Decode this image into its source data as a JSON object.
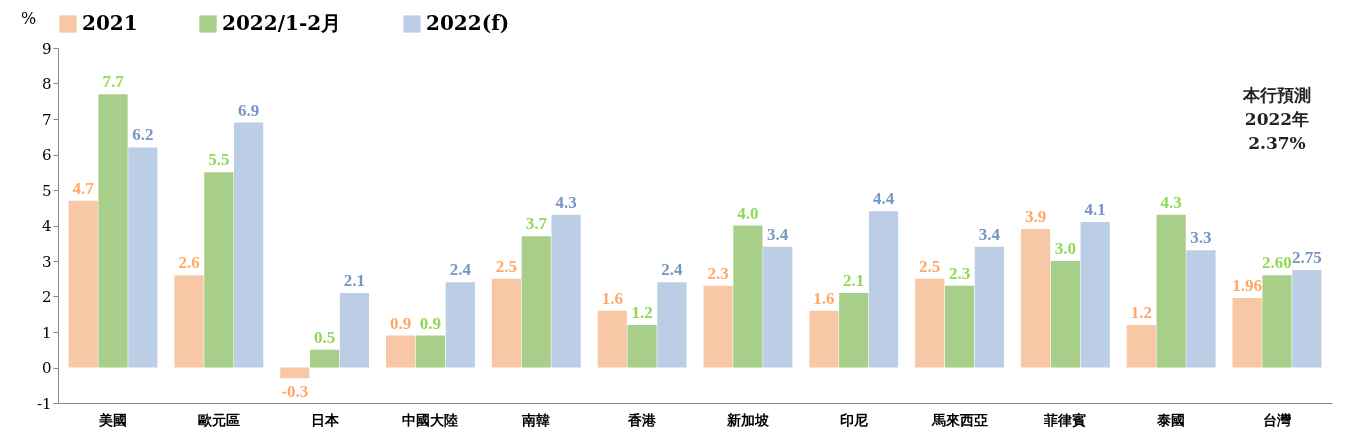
{
  "chart_data": {
    "type": "bar",
    "ylabel": "%",
    "categories": [
      "美國",
      "歐元區",
      "日本",
      "中國大陸",
      "南韓",
      "香港",
      "新加坡",
      "印尼",
      "馬來西亞",
      "菲律賓",
      "泰國",
      "台灣"
    ],
    "series": [
      {
        "name": "2021",
        "color": "#f8c8a6",
        "values": [
          4.7,
          2.6,
          -0.3,
          0.9,
          2.5,
          1.6,
          2.3,
          1.6,
          2.5,
          3.9,
          1.2,
          1.96
        ],
        "value_labels": [
          "4.7",
          "2.6",
          "-0.3",
          "0.9",
          "2.5",
          "1.6",
          "2.3",
          "1.6",
          "2.5",
          "3.9",
          "1.2",
          "1.96"
        ]
      },
      {
        "name": "2022/1-2月",
        "color": "#a8cf8a",
        "values": [
          7.7,
          5.5,
          0.5,
          0.9,
          3.7,
          1.2,
          4.0,
          2.1,
          2.3,
          3.0,
          4.3,
          2.6
        ],
        "value_labels": [
          "7.7",
          "5.5",
          "0.5",
          "0.9",
          "3.7",
          "1.2",
          "4.0",
          "2.1",
          "2.3",
          "3.0",
          "4.3",
          "2.60"
        ]
      },
      {
        "name": "2022(f)",
        "color": "#bccde6",
        "values": [
          6.2,
          6.9,
          2.1,
          2.4,
          4.3,
          2.4,
          3.4,
          4.4,
          3.4,
          4.1,
          3.3,
          2.75
        ],
        "value_labels": [
          "6.2",
          "6.9",
          "2.1",
          "2.4",
          "4.3",
          "2.4",
          "3.4",
          "4.4",
          "3.4",
          "4.1",
          "3.3",
          "2.75"
        ]
      }
    ],
    "ylim": [
      -1,
      9
    ],
    "yticks": [
      -1,
      0,
      1,
      2,
      3,
      4,
      5,
      6,
      7,
      8,
      9
    ],
    "grid": false,
    "legend": "top",
    "annotations": [
      "本行預測\n2022年\n2.37%"
    ]
  }
}
